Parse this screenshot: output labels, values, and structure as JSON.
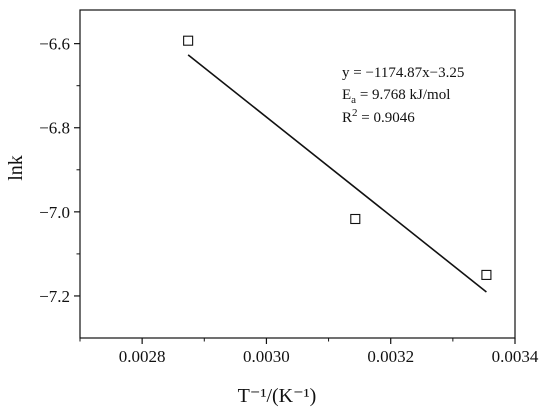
{
  "chart_data": {
    "type": "scatter",
    "title": "",
    "xlabel": "T⁻¹/(K⁻¹)",
    "ylabel": "lnk",
    "xlim": [
      0.0027,
      0.0034
    ],
    "ylim": [
      -7.3,
      -6.52
    ],
    "xticks": [
      0.0028,
      0.003,
      0.0032,
      0.0034
    ],
    "xtick_labels": [
      "0.0028",
      "0.0030",
      "0.0032",
      "0.0034"
    ],
    "yticks": [
      -7.2,
      -7.0,
      -6.8,
      -6.6
    ],
    "ytick_labels": [
      "−7.2",
      "−7.0",
      "−6.8",
      "−6.6"
    ],
    "grid": false,
    "series": [
      {
        "marker": "open-square",
        "points": [
          {
            "x": 0.002874,
            "y": -6.593
          },
          {
            "x": 0.003143,
            "y": -7.017
          },
          {
            "x": 0.003354,
            "y": -7.15
          }
        ]
      }
    ],
    "fit_line": {
      "slope": -1174.87,
      "intercept": -3.25,
      "x_range": [
        0.002874,
        0.003354
      ]
    },
    "annotations": {
      "equation": "y  =  −1174.87x−3.25",
      "ea_prefix": "E",
      "ea_sub": "a",
      "ea_value": " = 9.768 kJ/mol",
      "r2_prefix": "R",
      "r2_sup": "2",
      "r2_value": " = 0.9046"
    }
  }
}
